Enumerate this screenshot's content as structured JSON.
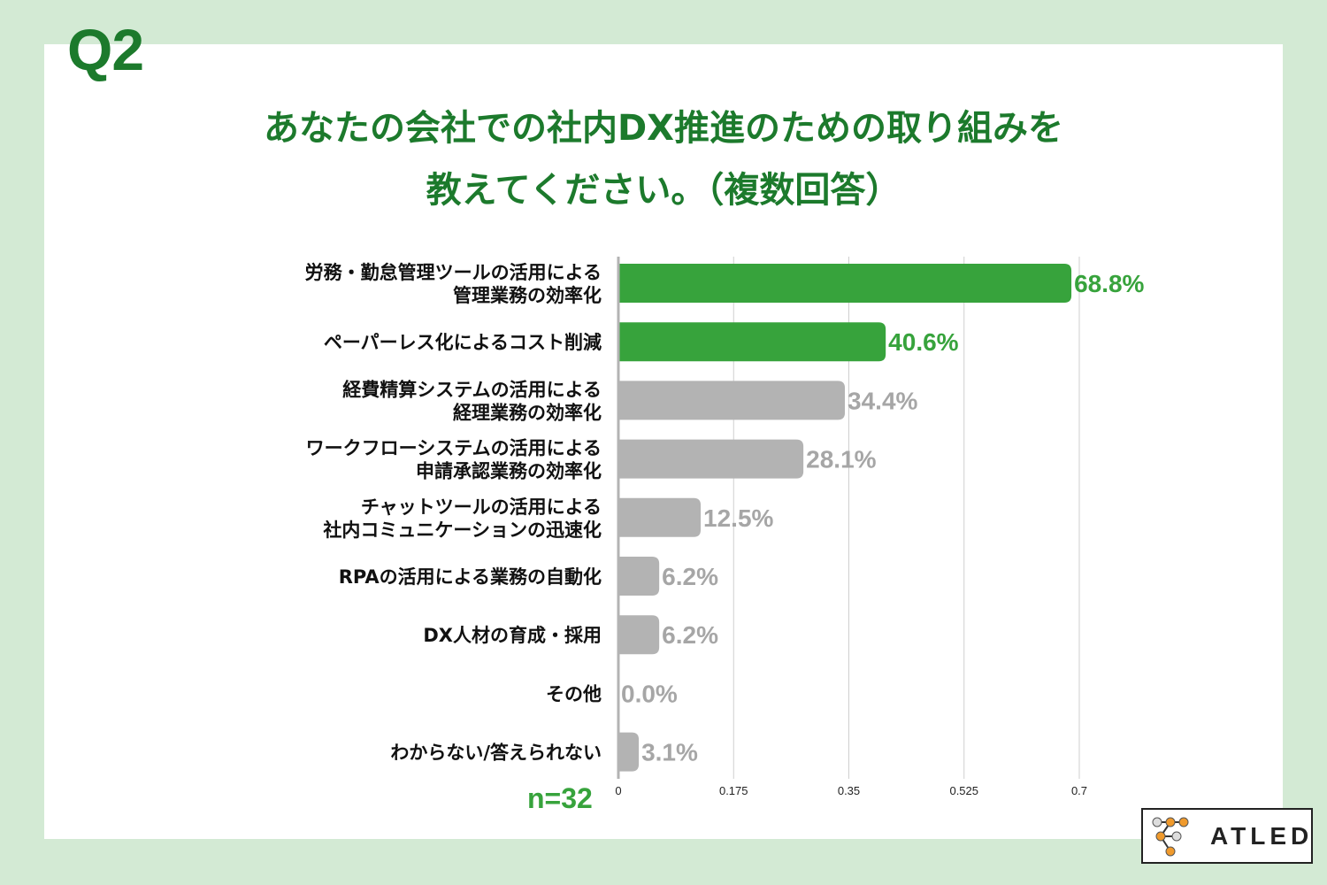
{
  "question_number": "Q2",
  "title_line1": "あなたの会社での社内DX推進のための取り組みを",
  "title_line2": "教えてください。（複数回答）",
  "sample_size": "n=32",
  "logo_text": "ATLED",
  "colors": {
    "background": "#d3ead4",
    "title": "#1c7a2c",
    "highlight": "#37a33c",
    "bar_gray": "#b3b3b3",
    "value_gray": "#a6a6a6"
  },
  "chart_data": {
    "type": "bar",
    "orientation": "horizontal",
    "categories": [
      [
        "労務・勤怠管理ツールの活用による",
        "管理業務の効率化"
      ],
      [
        "ペーパーレス化によるコスト削減"
      ],
      [
        "経費精算システムの活用による",
        "経理業務の効率化"
      ],
      [
        "ワークフローシステムの活用による",
        "申請承認業務の効率化"
      ],
      [
        "チャットツールの活用による",
        "社内コミュニケーションの迅速化"
      ],
      [
        "RPAの活用による業務の自動化"
      ],
      [
        "DX人材の育成・採用"
      ],
      [
        "その他"
      ],
      [
        "わからない/答えられない"
      ]
    ],
    "values": [
      0.688,
      0.406,
      0.344,
      0.281,
      0.125,
      0.062,
      0.062,
      0.0,
      0.031
    ],
    "value_labels": [
      "68.8%",
      "40.6%",
      "34.4%",
      "28.1%",
      "12.5%",
      "6.2%",
      "6.2%",
      "0.0%",
      "3.1%"
    ],
    "highlighted": [
      true,
      true,
      false,
      false,
      false,
      false,
      false,
      false,
      false
    ],
    "xlim": [
      0,
      0.7
    ],
    "xticks": [
      "0",
      "0.175",
      "0.35",
      "0.525",
      "0.7"
    ],
    "grid": true
  }
}
